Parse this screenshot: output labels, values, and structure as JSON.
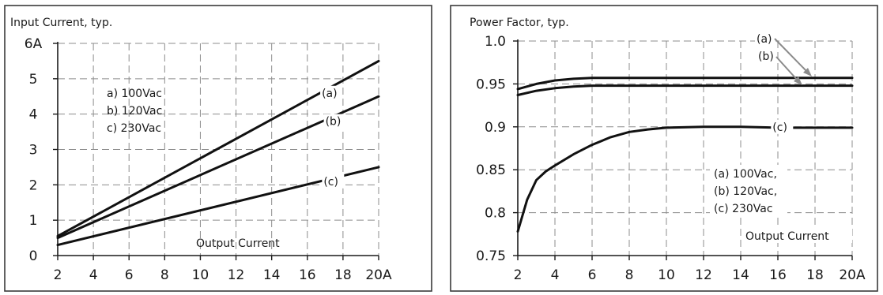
{
  "chart_data": [
    {
      "type": "line",
      "title": "Input Current, typ.",
      "xlabel": "Output Current",
      "ylabel": "",
      "xlim": [
        2,
        20
      ],
      "ylim": [
        0,
        6
      ],
      "x_tick_labels": [
        "2",
        "4",
        "6",
        "8",
        "10",
        "12",
        "14",
        "16",
        "18",
        "20A"
      ],
      "y_tick_labels": [
        "0",
        "1",
        "2",
        "3",
        "4",
        "5",
        "6A"
      ],
      "grid": true,
      "notes": [
        "a) 100Vac",
        "b) 120Vac",
        "c) 230Vac"
      ],
      "series": [
        {
          "name": "(a)",
          "x": [
            2,
            20
          ],
          "y": [
            0.55,
            5.5
          ],
          "label_at": [
            16.9,
            4.6
          ]
        },
        {
          "name": "(b)",
          "x": [
            2,
            20
          ],
          "y": [
            0.5,
            4.5
          ],
          "label_at": [
            17.1,
            3.8
          ]
        },
        {
          "name": "(c)",
          "x": [
            2,
            20
          ],
          "y": [
            0.3,
            2.5
          ],
          "label_at": [
            17.0,
            2.1
          ]
        }
      ]
    },
    {
      "type": "line",
      "title": "Power Factor, typ.",
      "xlabel": "Output Current",
      "ylabel": "",
      "xlim": [
        2,
        20
      ],
      "ylim": [
        0.75,
        1.0
      ],
      "x_tick_labels": [
        "2",
        "4",
        "6",
        "8",
        "10",
        "12",
        "14",
        "16",
        "18",
        "20A"
      ],
      "y_tick_labels": [
        "0.75",
        "0.8",
        "0.85",
        "0.9",
        "0.95",
        "1.0"
      ],
      "grid": true,
      "notes": [
        "(a) 100Vac,",
        "(b) 120Vac,",
        "(c) 230Vac"
      ],
      "series": [
        {
          "name": "(a)",
          "x": [
            2,
            3,
            4,
            5,
            6,
            8,
            10,
            12,
            14,
            16,
            18,
            20
          ],
          "y": [
            0.944,
            0.95,
            0.954,
            0.956,
            0.957,
            0.957,
            0.957,
            0.957,
            0.957,
            0.957,
            0.957,
            0.957
          ]
        },
        {
          "name": "(b)",
          "x": [
            2,
            3,
            4,
            5,
            6,
            8,
            10,
            12,
            14,
            16,
            18,
            20
          ],
          "y": [
            0.937,
            0.942,
            0.945,
            0.947,
            0.948,
            0.948,
            0.948,
            0.948,
            0.948,
            0.948,
            0.948,
            0.948
          ]
        },
        {
          "name": "(c)",
          "x": [
            2,
            2.5,
            3,
            3.5,
            4,
            5,
            6,
            7,
            8,
            9,
            10,
            12,
            14,
            16,
            18,
            20
          ],
          "y": [
            0.778,
            0.815,
            0.838,
            0.848,
            0.855,
            0.868,
            0.879,
            0.888,
            0.894,
            0.897,
            0.899,
            0.9,
            0.9,
            0.899,
            0.899,
            0.899
          ],
          "label_at": [
            15.8,
            0.9
          ]
        }
      ]
    }
  ]
}
